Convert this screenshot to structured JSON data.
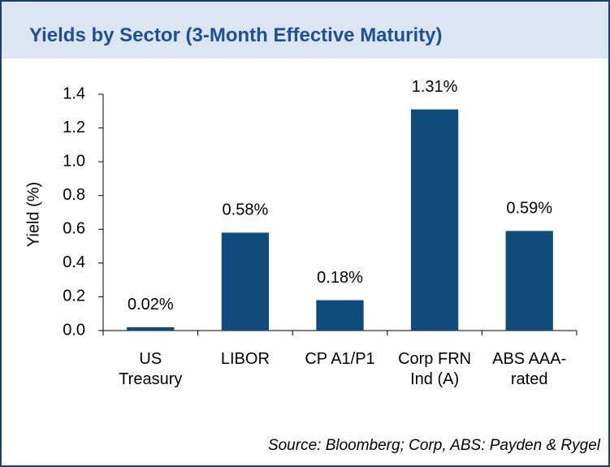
{
  "chart_data": {
    "type": "bar",
    "title": "Yields by Sector (3-Month Effective Maturity)",
    "y_label": "Yield (%)",
    "categories": [
      "US Treasury",
      "LIBOR",
      "CP A1/P1",
      "Corp FRN Ind (A)",
      "ABS AAA-rated"
    ],
    "values": [
      0.02,
      0.58,
      0.18,
      1.31,
      0.59
    ],
    "value_labels": [
      "0.02%",
      "0.58%",
      "0.18%",
      "1.31%",
      "0.59%"
    ],
    "color": "#0f4c7c",
    "ylim": [
      0,
      1.4
    ],
    "yticks": [
      {
        "value": 0,
        "label": "0.0"
      },
      0.2,
      0.4,
      0.6,
      0.8,
      {
        "value": 1,
        "label": "1.0"
      },
      1.2,
      1.4
    ],
    "source": "Source: Bloomberg; Corp, ABS: Payden & Rygel"
  }
}
